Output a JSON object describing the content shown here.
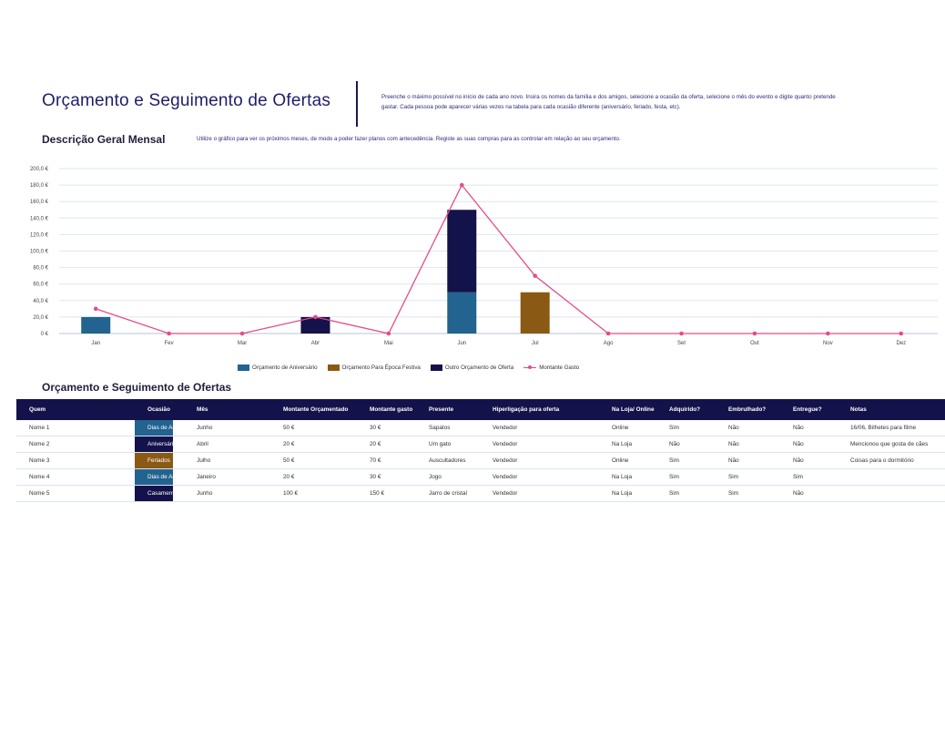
{
  "header": {
    "title": "Orçamento e Seguimento de Ofertas",
    "intro": "Preenche o máximo possível no início de cada ano novo. Insira os nomes da família e dos amigos, selecione a ocasião da oferta, selecione o mês do evento e digite quanto pretende gastar. Cada pessoa pode aparecer várias vezes na tabela para cada ocasião diferente (aniversário, feriado, festa, etc)."
  },
  "overview": {
    "title": "Descrição Geral Mensal",
    "description": "Utilize o gráfico para ver os próximos meses, de modo a poder fazer planos com antecedência. Registe as suas compras para as controlar em relação ao seu orçamento."
  },
  "chart_data": {
    "type": "bar",
    "stacked": true,
    "categories": [
      "Jan",
      "Fev",
      "Mar",
      "Abr",
      "Mai",
      "Jun",
      "Jul",
      "Ago",
      "Set",
      "Out",
      "Nov",
      "Dez"
    ],
    "series": [
      {
        "name": "Orçamento de Aniversário",
        "color": "#22638f",
        "values": [
          20,
          0,
          0,
          0,
          0,
          50,
          0,
          0,
          0,
          0,
          0,
          0
        ]
      },
      {
        "name": "Orçamento Para Época Festiva",
        "color": "#8a5a14",
        "values": [
          0,
          0,
          0,
          0,
          0,
          0,
          50,
          0,
          0,
          0,
          0,
          0
        ]
      },
      {
        "name": "Outro Orçamento de Oferta",
        "color": "#14124a",
        "values": [
          0,
          0,
          0,
          20,
          0,
          100,
          0,
          0,
          0,
          0,
          0,
          0
        ]
      },
      {
        "name": "Montante Gasto",
        "type": "line",
        "color": "#e64b87",
        "values": [
          30,
          0,
          0,
          20,
          0,
          180,
          70,
          0,
          0,
          0,
          0,
          0
        ]
      }
    ],
    "yticks": [
      "0 €",
      "20,0 €",
      "40,0 €",
      "60,0 €",
      "80,0 €",
      "100,0 €",
      "120,0 €",
      "140,0 €",
      "160,0 €",
      "180,0 €",
      "200,0 €"
    ],
    "ylim": [
      0,
      200
    ],
    "grid": true,
    "legend": "bottom"
  },
  "table": {
    "title": "Orçamento e Seguimento de Ofertas",
    "headers": [
      "Quem",
      "Ocasião",
      "Mês",
      "Montante Orçamentado",
      "Montante gasto",
      "Presente",
      "Hiperligação para oferta",
      "Na Loja/ Online",
      "Adquirido?",
      "Embrulhado?",
      "Entregue?",
      "Notas"
    ],
    "rows": [
      {
        "cells": [
          "Nome 1",
          "Dias de Anos",
          "Junho",
          "50 €",
          "30 €",
          "Sapatos",
          "Vendedor",
          "Online",
          "Sim",
          "Não",
          "Não",
          "16/06, Bilhetes para filme"
        ],
        "occasion_color": "#22638f"
      },
      {
        "cells": [
          "Nome 2",
          "Aniversário",
          "Abril",
          "20 €",
          "20 €",
          "Um gato",
          "Vendedor",
          "Na Loja",
          "Não",
          "Não",
          "Não",
          "Mencionou que gosta de cães"
        ],
        "occasion_color": "#14124a"
      },
      {
        "cells": [
          "Nome 3",
          "Feriados",
          "Julho",
          "50 €",
          "70 €",
          "Auscultadores",
          "Vendedor",
          "Online",
          "Sim",
          "Não",
          "Não",
          "Coisas para o dormitório"
        ],
        "occasion_color": "#8a5a14"
      },
      {
        "cells": [
          "Nome 4",
          "Dias de Anos",
          "Janeiro",
          "20 €",
          "30 €",
          "Jogo",
          "Vendedor",
          "Na Loja",
          "Sim",
          "Sim",
          "Sim",
          ""
        ],
        "occasion_color": "#22638f"
      },
      {
        "cells": [
          "Nome 5",
          "Casamentos",
          "Junho",
          "100 €",
          "150 €",
          "Jarro de cristal",
          "Vendedor",
          "Na Loja",
          "Sim",
          "Sim",
          "Não",
          ""
        ],
        "occasion_color": "#14124a"
      }
    ]
  }
}
